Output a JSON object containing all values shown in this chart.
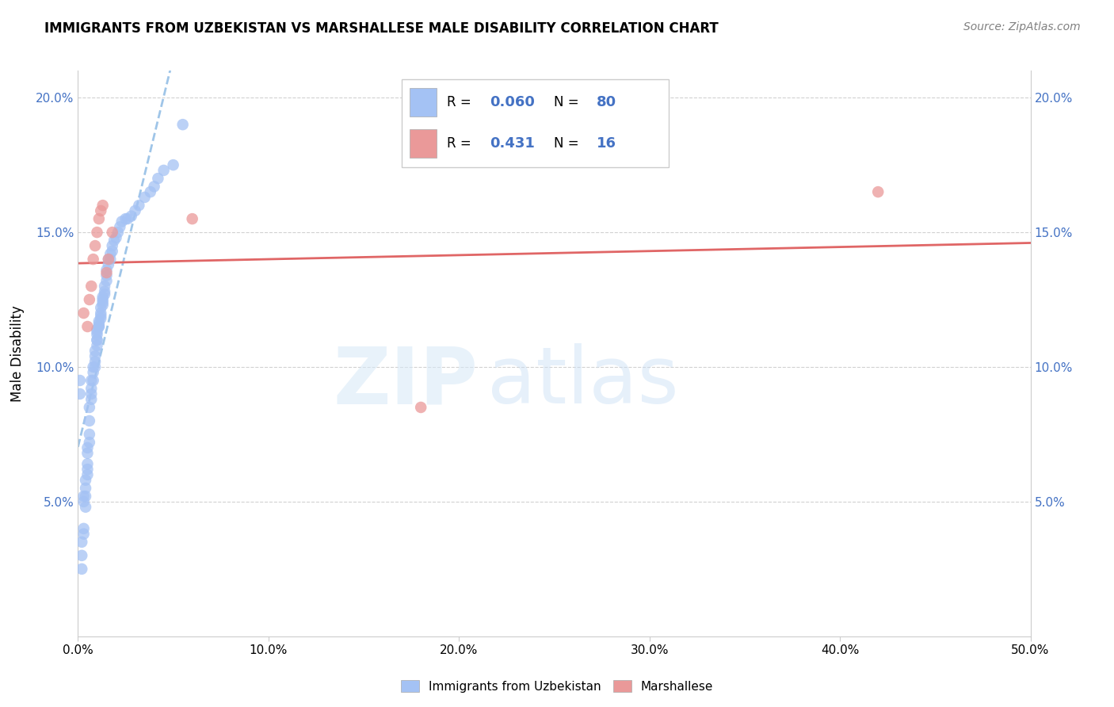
{
  "title": "IMMIGRANTS FROM UZBEKISTAN VS MARSHALLESE MALE DISABILITY CORRELATION CHART",
  "source": "Source: ZipAtlas.com",
  "ylabel": "Male Disability",
  "xlim": [
    0.0,
    0.5
  ],
  "ylim": [
    0.0,
    0.21
  ],
  "ytick_vals": [
    0.05,
    0.1,
    0.15,
    0.2
  ],
  "ytick_labels": [
    "5.0%",
    "10.0%",
    "15.0%",
    "20.0%"
  ],
  "xtick_vals": [
    0.0,
    0.1,
    0.2,
    0.3,
    0.4,
    0.5
  ],
  "xtick_labels": [
    "0.0%",
    "10.0%",
    "20.0%",
    "30.0%",
    "40.0%",
    "50.0%"
  ],
  "color_blue": "#a4c2f4",
  "color_pink": "#ea9999",
  "color_blue_text": "#4472c4",
  "color_pink_line": "#e06666",
  "color_blue_line": "#9fc5e8",
  "uzbekistan_x": [
    0.001,
    0.001,
    0.002,
    0.002,
    0.002,
    0.003,
    0.003,
    0.003,
    0.003,
    0.004,
    0.004,
    0.004,
    0.004,
    0.005,
    0.005,
    0.005,
    0.005,
    0.005,
    0.006,
    0.006,
    0.006,
    0.006,
    0.007,
    0.007,
    0.007,
    0.007,
    0.008,
    0.008,
    0.008,
    0.009,
    0.009,
    0.009,
    0.009,
    0.01,
    0.01,
    0.01,
    0.01,
    0.01,
    0.01,
    0.011,
    0.011,
    0.011,
    0.011,
    0.012,
    0.012,
    0.012,
    0.012,
    0.013,
    0.013,
    0.013,
    0.013,
    0.014,
    0.014,
    0.014,
    0.015,
    0.015,
    0.015,
    0.016,
    0.016,
    0.017,
    0.017,
    0.018,
    0.018,
    0.019,
    0.02,
    0.021,
    0.022,
    0.023,
    0.025,
    0.026,
    0.028,
    0.03,
    0.032,
    0.035,
    0.038,
    0.04,
    0.042,
    0.045,
    0.05,
    0.055
  ],
  "uzbekistan_y": [
    0.095,
    0.09,
    0.035,
    0.03,
    0.025,
    0.04,
    0.038,
    0.052,
    0.05,
    0.048,
    0.052,
    0.055,
    0.058,
    0.06,
    0.062,
    0.064,
    0.068,
    0.07,
    0.072,
    0.075,
    0.08,
    0.085,
    0.088,
    0.09,
    0.092,
    0.095,
    0.095,
    0.098,
    0.1,
    0.1,
    0.102,
    0.104,
    0.106,
    0.108,
    0.11,
    0.11,
    0.112,
    0.113,
    0.114,
    0.115,
    0.115,
    0.116,
    0.117,
    0.118,
    0.119,
    0.12,
    0.122,
    0.123,
    0.124,
    0.125,
    0.126,
    0.127,
    0.128,
    0.13,
    0.132,
    0.134,
    0.136,
    0.138,
    0.14,
    0.14,
    0.142,
    0.143,
    0.145,
    0.147,
    0.148,
    0.15,
    0.152,
    0.154,
    0.155,
    0.155,
    0.156,
    0.158,
    0.16,
    0.163,
    0.165,
    0.167,
    0.17,
    0.173,
    0.175,
    0.19
  ],
  "marshallese_x": [
    0.003,
    0.005,
    0.006,
    0.007,
    0.008,
    0.009,
    0.01,
    0.011,
    0.012,
    0.013,
    0.06,
    0.18,
    0.42,
    0.015,
    0.016,
    0.018
  ],
  "marshallese_y": [
    0.12,
    0.115,
    0.125,
    0.13,
    0.14,
    0.145,
    0.15,
    0.155,
    0.158,
    0.16,
    0.155,
    0.085,
    0.165,
    0.135,
    0.14,
    0.15
  ]
}
